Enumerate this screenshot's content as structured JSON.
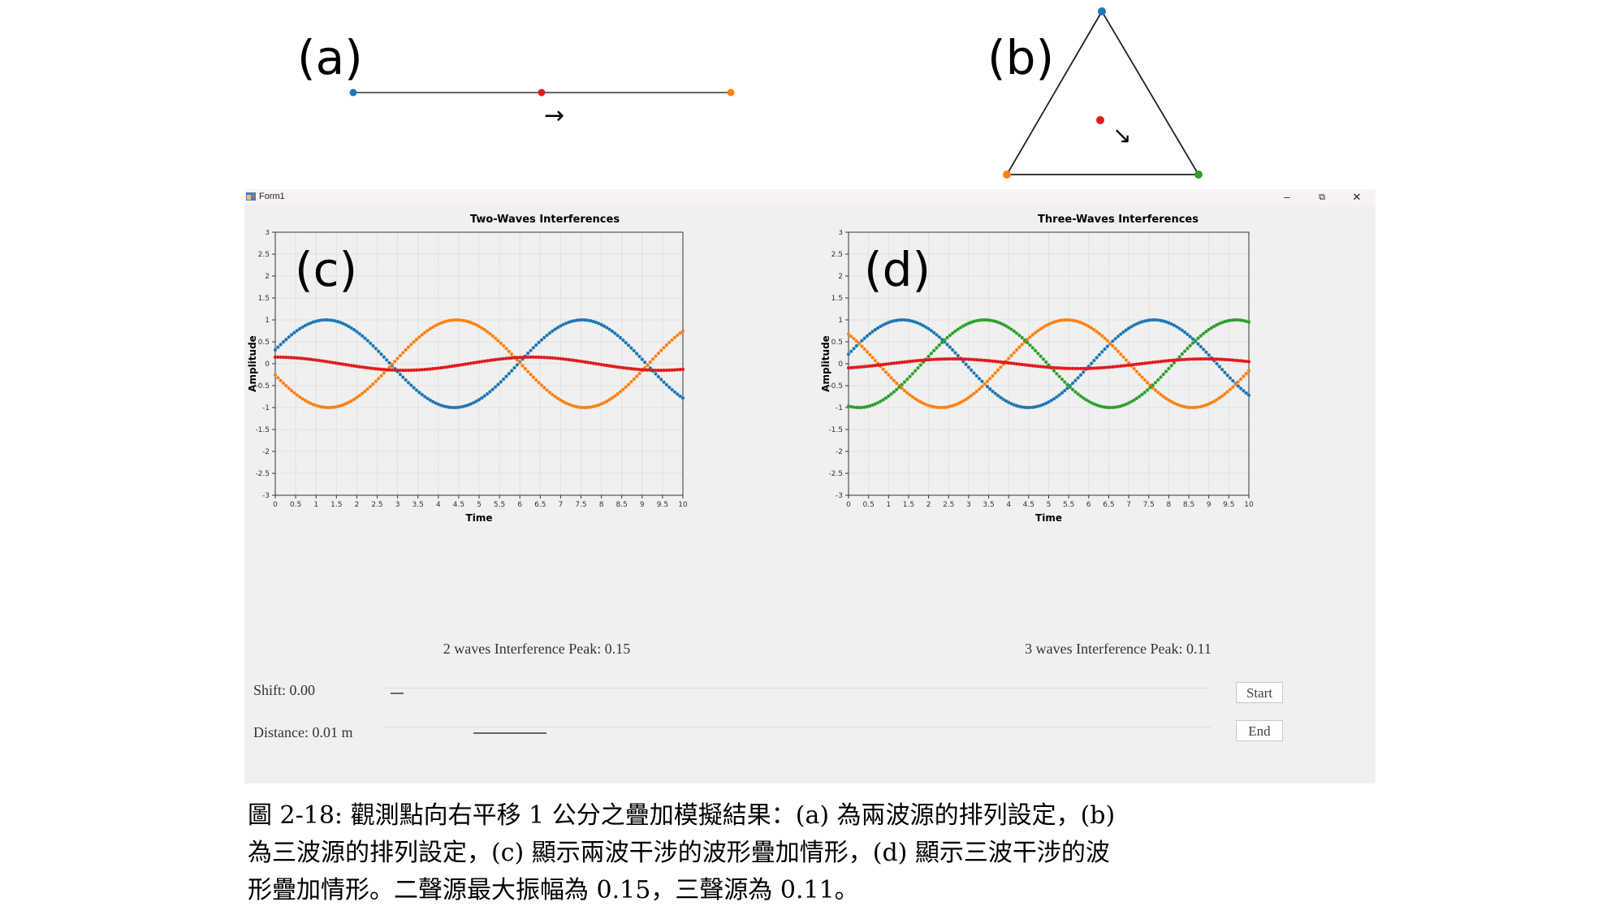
{
  "panel_labels": {
    "a": "(a)",
    "b": "(b)",
    "c": "(c)",
    "d": "(d)"
  },
  "diagram_a": {
    "sources": [
      {
        "color": "#1f77b4"
      },
      {
        "color": "#ff7f0e"
      }
    ],
    "observer_color": "#e31a1c",
    "arrow": "→"
  },
  "diagram_b": {
    "sources": [
      {
        "color": "#1f77b4"
      },
      {
        "color": "#ff7f0e"
      },
      {
        "color": "#2ca02c"
      }
    ],
    "observer_color": "#e31a1c",
    "arrow": "↘"
  },
  "window": {
    "title": "Form1",
    "minimize_glyph": "–",
    "restore_glyph": "⧉",
    "close_glyph": "✕"
  },
  "chart_data": [
    {
      "type": "scatter",
      "title": "Two-Waves Interferences",
      "xlabel": "Time",
      "ylabel": "Amplitude",
      "xlim": [
        0,
        10
      ],
      "ylim": [
        -3,
        3
      ],
      "xticks": [
        "0",
        "0.5",
        "1",
        "1.5",
        "2",
        "2.5",
        "3",
        "3.5",
        "4",
        "4.5",
        "5",
        "5.5",
        "6",
        "6.5",
        "7",
        "7.5",
        "8",
        "8.5",
        "9",
        "9.5",
        "10"
      ],
      "yticks": [
        "3",
        "2.5",
        "2",
        "1.5",
        "1",
        "0.5",
        "0",
        "-0.5",
        "-1",
        "-1.5",
        "-2",
        "-2.5",
        "-3"
      ],
      "grid": true,
      "series": [
        {
          "color": "#1f77b4",
          "amplitude": 1.0,
          "period": 6.28,
          "peak_time": 1.25
        },
        {
          "color": "#ff7f0e",
          "amplitude": 1.0,
          "period": 6.28,
          "peak_time": 4.45
        },
        {
          "color": "#e31a1c",
          "amplitude": 0.15,
          "period": 6.28,
          "peak_time": 6.3
        }
      ]
    },
    {
      "type": "scatter",
      "title": "Three-Waves Interferences",
      "xlabel": "Time",
      "ylabel": "Amplitude",
      "xlim": [
        0,
        10
      ],
      "ylim": [
        -3,
        3
      ],
      "xticks": [
        "0",
        "0.5",
        "1",
        "1.5",
        "2",
        "2.5",
        "3",
        "3.5",
        "4",
        "4.5",
        "5",
        "5.5",
        "6",
        "6.5",
        "7",
        "7.5",
        "8",
        "8.5",
        "9",
        "9.5",
        "10"
      ],
      "yticks": [
        "3",
        "2.5",
        "2",
        "1.5",
        "1",
        "0.5",
        "0",
        "-0.5",
        "-1",
        "-1.5",
        "-2",
        "-2.5",
        "-3"
      ],
      "grid": true,
      "series": [
        {
          "color": "#1f77b4",
          "amplitude": 1.0,
          "period": 6.28,
          "peak_time": 1.35
        },
        {
          "color": "#ff7f0e",
          "amplitude": 1.0,
          "period": 6.28,
          "peak_time": 5.45
        },
        {
          "color": "#2ca02c",
          "amplitude": 1.0,
          "period": 6.28,
          "peak_time": 3.4
        },
        {
          "color": "#e31a1c",
          "amplitude": 0.11,
          "period": 6.28,
          "peak_time": 2.6
        }
      ]
    }
  ],
  "peaks": {
    "two": "2 waves Interference Peak: 0.15",
    "three": "3 waves Interference Peak: 0.11"
  },
  "controls": {
    "shift_label": "Shift: 0.00",
    "distance_label": "Distance: 0.01 m",
    "shift_value": 0.01,
    "distance_value": 0.11,
    "start_label": "Start",
    "end_label": "End"
  },
  "caption": {
    "line1": "圖 2-18: 觀測點向右平移 1 公分之疊加模擬結果：(a) 為兩波源的排列設定，(b)",
    "line2": "為三波源的排列設定，(c) 顯示兩波干涉的波形疊加情形，(d) 顯示三波干涉的波",
    "line3": "形疊加情形。二聲源最大振幅為 0.15，三聲源為 0.11。"
  }
}
